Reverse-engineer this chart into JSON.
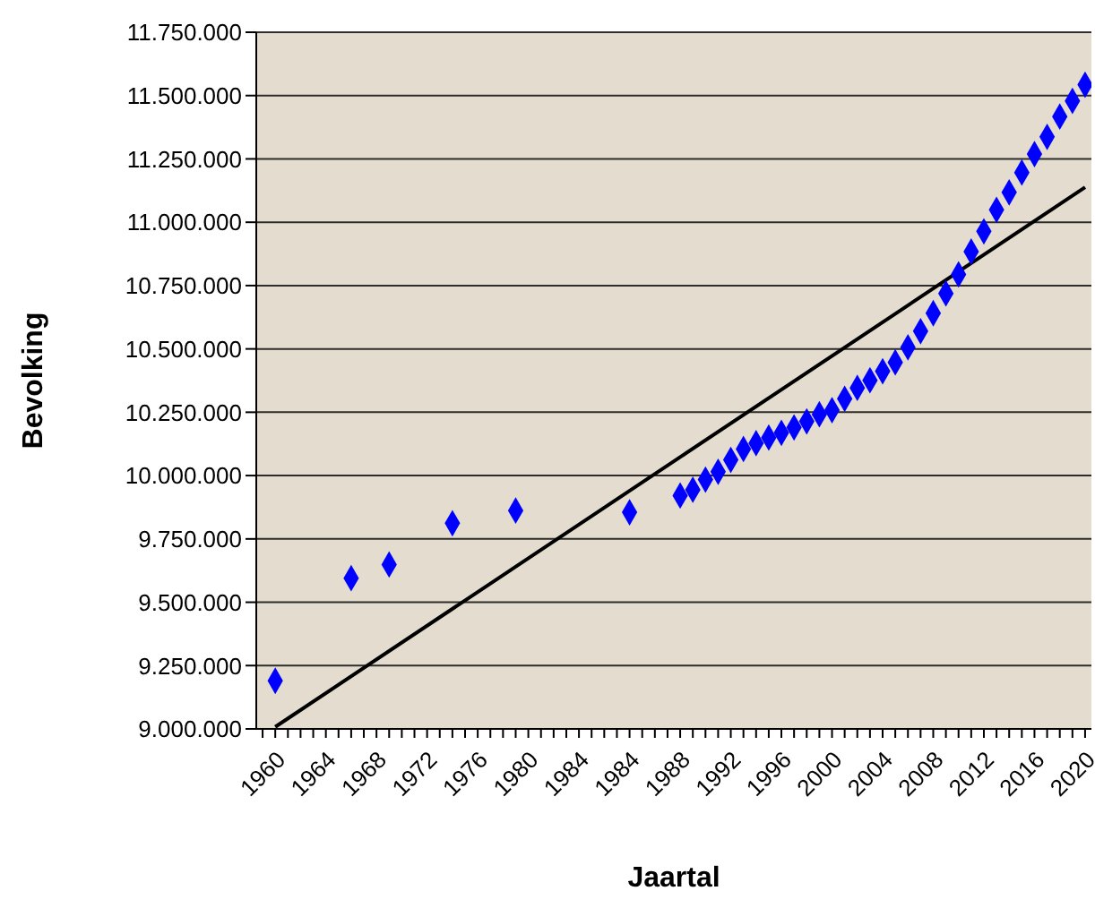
{
  "chart_data": {
    "type": "scatter",
    "xlabel": "Jaartal",
    "ylabel": "Bevolking",
    "categories": [
      "1960",
      null,
      null,
      null,
      "1964",
      null,
      null,
      null,
      "1968",
      null,
      null,
      null,
      "1972",
      null,
      null,
      null,
      "1976",
      null,
      null,
      null,
      "1980",
      null,
      null,
      null,
      "1984",
      null,
      null,
      null,
      "1984",
      null,
      null,
      null,
      "1988",
      null,
      null,
      null,
      "1992",
      null,
      null,
      null,
      "1996",
      null,
      null,
      null,
      "2000",
      null,
      null,
      null,
      "2004",
      null,
      null,
      null,
      "2008",
      null,
      null,
      null,
      "2012",
      null,
      null,
      null,
      "2016",
      null,
      null,
      null,
      "2020",
      null
    ],
    "series": [
      {
        "marker": "diamond",
        "color": "#0000ff",
        "values": [
          null,
          9190000,
          null,
          null,
          null,
          null,
          null,
          9595000,
          null,
          null,
          9649000,
          null,
          null,
          null,
          null,
          9812000,
          null,
          null,
          null,
          null,
          9862000,
          null,
          null,
          null,
          null,
          null,
          null,
          null,
          null,
          9855000,
          null,
          null,
          null,
          9921000,
          9944000,
          9984000,
          10015000,
          10062000,
          10105000,
          10128000,
          10150000,
          10169000,
          10190000,
          10214000,
          10242000,
          10258000,
          10303000,
          10346000,
          10376000,
          10412000,
          10447000,
          10506000,
          10570000,
          10641000,
          10719000,
          10794000,
          10884000,
          10964000,
          11049000,
          11118000,
          11196000,
          11269000,
          11337000,
          11417000,
          11479000,
          11543000
        ]
      },
      {
        "type": "line",
        "marker": "none",
        "line_style": "solid",
        "color": "#000000",
        "values": [
          null,
          9008000,
          null,
          null,
          null,
          null,
          null,
          null,
          null,
          null,
          null,
          null,
          null,
          null,
          null,
          null,
          null,
          null,
          null,
          null,
          null,
          null,
          null,
          null,
          null,
          null,
          null,
          null,
          null,
          null,
          null,
          null,
          null,
          null,
          null,
          null,
          null,
          null,
          null,
          null,
          null,
          null,
          null,
          null,
          null,
          null,
          null,
          null,
          null,
          null,
          null,
          null,
          null,
          null,
          null,
          null,
          null,
          null,
          null,
          null,
          null,
          null,
          null,
          null,
          null,
          11138000
        ]
      }
    ],
    "ylim": [
      9000000,
      11750000
    ],
    "yticks": [
      {
        "value": 9000000,
        "label": "9.000.000"
      },
      {
        "value": 9250000,
        "label": "9.250.000"
      },
      {
        "value": 9500000,
        "label": "9.500.000"
      },
      {
        "value": 9750000,
        "label": "9.750.000"
      },
      {
        "value": 10000000,
        "label": "10.000.000"
      },
      {
        "value": 10250000,
        "label": "10.250.000"
      },
      {
        "value": 10500000,
        "label": "10.500.000"
      },
      {
        "value": 10750000,
        "label": "10.750.000"
      },
      {
        "value": 11000000,
        "label": "11.000.000"
      },
      {
        "value": 11250000,
        "label": "11.250.000"
      },
      {
        "value": 11500000,
        "label": "11.500.000"
      },
      {
        "value": 11750000,
        "label": "11.750.000"
      }
    ],
    "grid": "y"
  }
}
